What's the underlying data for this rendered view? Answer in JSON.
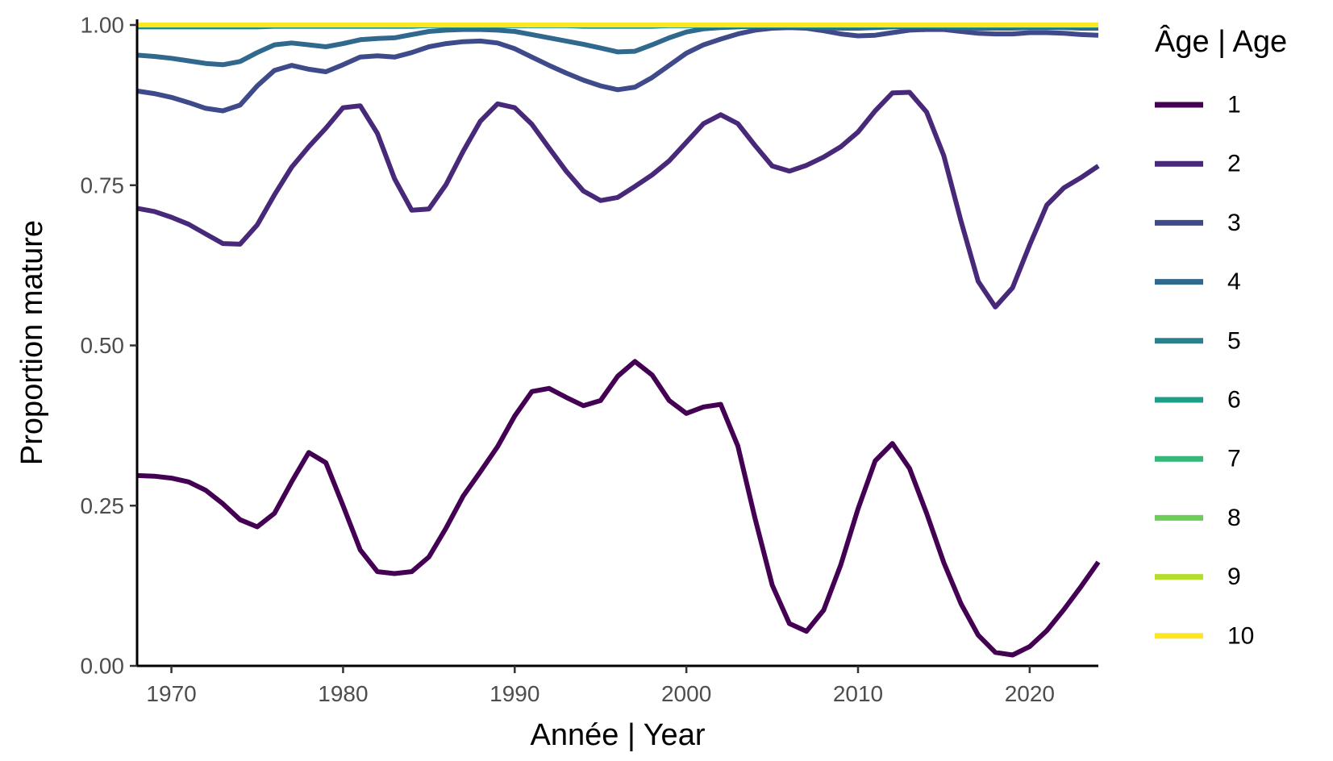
{
  "chart_data": {
    "type": "line",
    "xlabel": "Année | Year",
    "ylabel": "Proportion mature",
    "xlim": [
      1968,
      2024
    ],
    "ylim": [
      0,
      1
    ],
    "x_ticks": [
      1970,
      1980,
      1990,
      2000,
      2010,
      2020
    ],
    "y_ticks": [
      0,
      0.25,
      0.5,
      0.75,
      1
    ],
    "y_tick_labels": [
      "0.00",
      "0.25",
      "0.50",
      "0.75",
      "1.00"
    ],
    "grid": false,
    "legend_title": "Âge | Age",
    "legend_position": "right",
    "x": [
      1968,
      1969,
      1970,
      1971,
      1972,
      1973,
      1974,
      1975,
      1976,
      1977,
      1978,
      1979,
      1980,
      1981,
      1982,
      1983,
      1984,
      1985,
      1986,
      1987,
      1988,
      1989,
      1990,
      1991,
      1992,
      1993,
      1994,
      1995,
      1996,
      1997,
      1998,
      1999,
      2000,
      2001,
      2002,
      2003,
      2004,
      2005,
      2006,
      2007,
      2008,
      2009,
      2010,
      2011,
      2012,
      2013,
      2014,
      2015,
      2016,
      2017,
      2018,
      2019,
      2020,
      2021,
      2022,
      2023,
      2024
    ],
    "series": [
      {
        "name": "1",
        "color": "#440154",
        "values": [
          0.297,
          0.296,
          0.293,
          0.287,
          0.274,
          0.253,
          0.228,
          0.217,
          0.238,
          0.287,
          0.333,
          0.317,
          0.25,
          0.181,
          0.147,
          0.144,
          0.147,
          0.17,
          0.215,
          0.265,
          0.303,
          0.342,
          0.39,
          0.428,
          0.433,
          0.419,
          0.406,
          0.414,
          0.452,
          0.475,
          0.454,
          0.414,
          0.394,
          0.404,
          0.408,
          0.343,
          0.23,
          0.126,
          0.066,
          0.054,
          0.087,
          0.158,
          0.245,
          0.32,
          0.347,
          0.308,
          0.238,
          0.161,
          0.097,
          0.048,
          0.021,
          0.017,
          0.03,
          0.055,
          0.088,
          0.124,
          0.162
        ]
      },
      {
        "name": "2",
        "color": "#482878",
        "values": [
          0.714,
          0.709,
          0.7,
          0.689,
          0.674,
          0.659,
          0.658,
          0.688,
          0.735,
          0.778,
          0.81,
          0.839,
          0.871,
          0.874,
          0.831,
          0.76,
          0.711,
          0.713,
          0.751,
          0.803,
          0.85,
          0.877,
          0.871,
          0.845,
          0.808,
          0.772,
          0.741,
          0.726,
          0.731,
          0.748,
          0.766,
          0.788,
          0.817,
          0.846,
          0.86,
          0.846,
          0.812,
          0.78,
          0.772,
          0.781,
          0.794,
          0.81,
          0.833,
          0.866,
          0.894,
          0.895,
          0.864,
          0.796,
          0.694,
          0.6,
          0.56,
          0.59,
          0.657,
          0.719,
          0.746,
          0.762,
          0.78
        ]
      },
      {
        "name": "3",
        "color": "#3E4A89",
        "values": [
          0.897,
          0.893,
          0.887,
          0.879,
          0.87,
          0.866,
          0.875,
          0.905,
          0.929,
          0.937,
          0.931,
          0.927,
          0.938,
          0.95,
          0.952,
          0.95,
          0.957,
          0.966,
          0.971,
          0.974,
          0.975,
          0.972,
          0.963,
          0.95,
          0.937,
          0.925,
          0.914,
          0.905,
          0.899,
          0.903,
          0.918,
          0.937,
          0.956,
          0.969,
          0.978,
          0.986,
          0.992,
          0.995,
          0.996,
          0.995,
          0.991,
          0.986,
          0.983,
          0.984,
          0.988,
          0.992,
          0.993,
          0.993,
          0.99,
          0.987,
          0.986,
          0.986,
          0.988,
          0.988,
          0.987,
          0.985,
          0.984
        ]
      },
      {
        "name": "4",
        "color": "#31688E",
        "values": [
          0.953,
          0.951,
          0.948,
          0.944,
          0.94,
          0.938,
          0.943,
          0.957,
          0.969,
          0.972,
          0.969,
          0.966,
          0.971,
          0.977,
          0.979,
          0.98,
          0.985,
          0.99,
          0.992,
          0.993,
          0.993,
          0.992,
          0.99,
          0.985,
          0.98,
          0.975,
          0.97,
          0.964,
          0.958,
          0.959,
          0.969,
          0.98,
          0.989,
          0.994,
          0.996,
          0.997,
          0.998,
          0.998,
          0.998,
          0.997,
          0.996,
          0.995,
          0.995,
          0.996,
          0.997,
          0.998,
          0.998,
          0.997,
          0.996,
          0.995,
          0.995,
          0.995,
          0.996,
          0.996,
          0.996,
          0.995,
          0.995
        ]
      },
      {
        "name": "5",
        "color": "#26828E",
        "values": [
          0.997,
          0.997,
          0.997,
          0.997,
          0.997,
          0.997,
          0.997,
          0.997,
          0.998,
          0.998,
          0.998,
          0.998,
          0.998,
          0.998,
          0.998,
          0.998,
          0.998,
          0.999,
          0.999,
          0.999,
          0.999,
          0.999,
          0.999,
          0.999,
          0.999,
          0.999,
          0.998,
          0.998,
          0.998,
          0.998,
          0.998,
          0.999,
          0.999,
          0.999,
          0.999,
          0.999,
          0.999,
          0.999,
          0.999,
          0.999,
          0.999,
          0.999,
          0.999,
          0.999,
          0.999,
          0.999,
          0.999,
          0.999,
          0.999,
          0.999,
          0.999,
          0.999,
          0.999,
          0.999,
          0.999,
          0.999,
          0.999
        ]
      },
      {
        "name": "6",
        "color": "#1F9E89",
        "values": [
          0.999,
          0.999,
          0.999,
          0.999,
          0.999,
          0.999,
          0.999,
          0.999,
          0.999,
          0.999,
          0.999,
          0.999,
          0.999,
          0.999,
          0.999,
          0.999,
          0.999,
          0.999,
          0.999,
          0.999,
          0.999,
          0.999,
          0.999,
          0.999,
          0.999,
          0.999,
          0.999,
          0.999,
          0.999,
          0.999,
          0.999,
          0.999,
          0.999,
          0.999,
          0.999,
          0.999,
          0.999,
          0.999,
          0.999,
          0.999,
          0.999,
          0.999,
          0.999,
          0.999,
          0.999,
          0.999,
          0.999,
          0.999,
          0.999,
          0.999,
          0.999,
          0.999,
          0.999,
          0.999,
          0.999,
          0.999,
          0.999
        ]
      },
      {
        "name": "7",
        "color": "#35B779",
        "values": [
          1,
          1,
          1,
          1,
          1,
          1,
          1,
          1,
          1,
          1,
          1,
          1,
          1,
          1,
          1,
          1,
          1,
          1,
          1,
          1,
          1,
          1,
          1,
          1,
          1,
          1,
          1,
          1,
          1,
          1,
          1,
          1,
          1,
          1,
          1,
          1,
          1,
          1,
          1,
          1,
          1,
          1,
          1,
          1,
          1,
          1,
          1,
          1,
          1,
          1,
          1,
          1,
          1,
          1,
          1,
          1,
          1
        ]
      },
      {
        "name": "8",
        "color": "#6DCD59",
        "values": [
          1,
          1,
          1,
          1,
          1,
          1,
          1,
          1,
          1,
          1,
          1,
          1,
          1,
          1,
          1,
          1,
          1,
          1,
          1,
          1,
          1,
          1,
          1,
          1,
          1,
          1,
          1,
          1,
          1,
          1,
          1,
          1,
          1,
          1,
          1,
          1,
          1,
          1,
          1,
          1,
          1,
          1,
          1,
          1,
          1,
          1,
          1,
          1,
          1,
          1,
          1,
          1,
          1,
          1,
          1,
          1,
          1
        ]
      },
      {
        "name": "9",
        "color": "#B4DE2C",
        "values": [
          1,
          1,
          1,
          1,
          1,
          1,
          1,
          1,
          1,
          1,
          1,
          1,
          1,
          1,
          1,
          1,
          1,
          1,
          1,
          1,
          1,
          1,
          1,
          1,
          1,
          1,
          1,
          1,
          1,
          1,
          1,
          1,
          1,
          1,
          1,
          1,
          1,
          1,
          1,
          1,
          1,
          1,
          1,
          1,
          1,
          1,
          1,
          1,
          1,
          1,
          1,
          1,
          1,
          1,
          1,
          1,
          1
        ]
      },
      {
        "name": "10",
        "color": "#FDE725",
        "values": [
          1,
          1,
          1,
          1,
          1,
          1,
          1,
          1,
          1,
          1,
          1,
          1,
          1,
          1,
          1,
          1,
          1,
          1,
          1,
          1,
          1,
          1,
          1,
          1,
          1,
          1,
          1,
          1,
          1,
          1,
          1,
          1,
          1,
          1,
          1,
          1,
          1,
          1,
          1,
          1,
          1,
          1,
          1,
          1,
          1,
          1,
          1,
          1,
          1,
          1,
          1,
          1,
          1,
          1,
          1,
          1,
          1
        ]
      }
    ]
  }
}
